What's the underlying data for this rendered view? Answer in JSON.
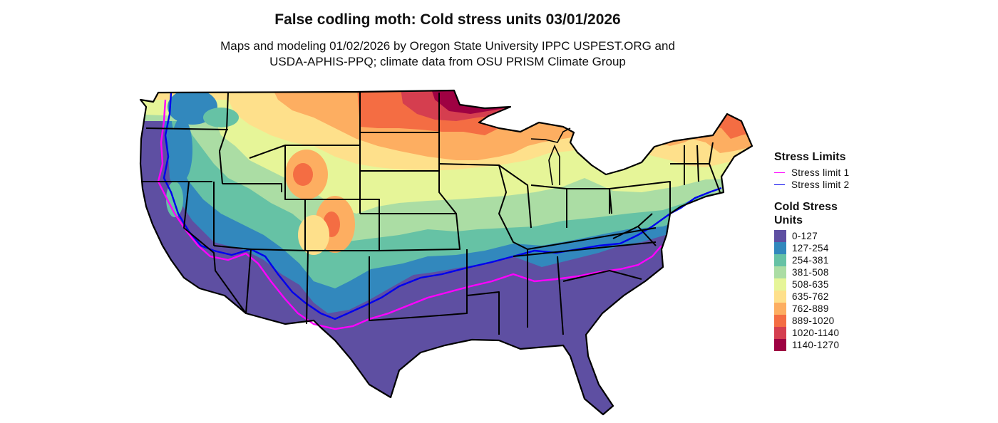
{
  "title": "False codling moth: Cold stress units 03/01/2026",
  "subtitle_line1": "Maps and modeling 01/02/2026 by Oregon State University IPPC USPEST.ORG and",
  "subtitle_line2": "USDA-APHIS-PPQ; climate data from OSU PRISM Climate Group",
  "legend_limits": {
    "title": "Stress Limits",
    "items": [
      {
        "label": "Stress limit 1",
        "color": "#ff00ff"
      },
      {
        "label": "Stress limit 2",
        "color": "#0000ee"
      }
    ]
  },
  "legend_units": {
    "title": "Cold Stress Units",
    "items": [
      {
        "label": "0-127",
        "color": "#5e4fa2"
      },
      {
        "label": "127-254",
        "color": "#3288bd"
      },
      {
        "label": "254-381",
        "color": "#66c2a5"
      },
      {
        "label": "381-508",
        "color": "#abdda4"
      },
      {
        "label": "508-635",
        "color": "#e6f598"
      },
      {
        "label": "635-762",
        "color": "#fee08b"
      },
      {
        "label": "762-889",
        "color": "#fdae61"
      },
      {
        "label": "889-1020",
        "color": "#f46d43"
      },
      {
        "label": "1020-1140",
        "color": "#d53e4f"
      },
      {
        "label": "1140-1270",
        "color": "#9e0142"
      }
    ]
  }
}
